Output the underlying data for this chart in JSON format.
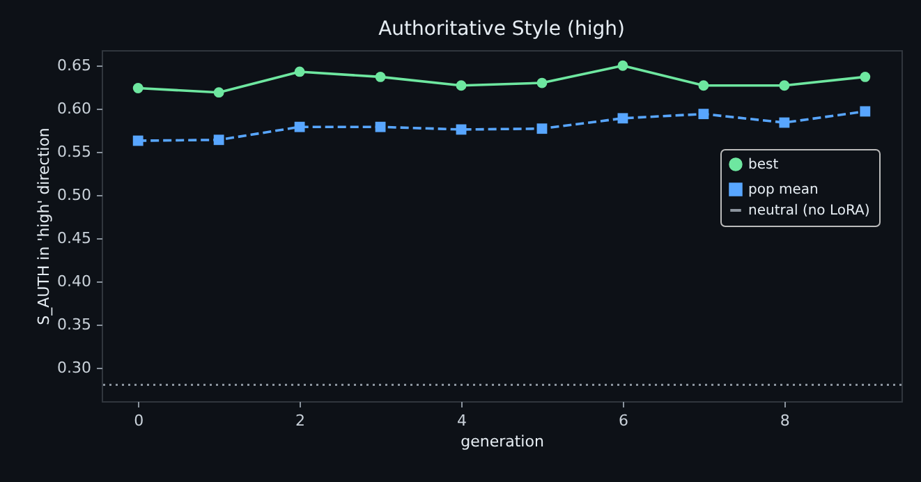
{
  "chart_data": {
    "type": "line",
    "title": "Authoritative Style (high)",
    "xlabel": "generation",
    "ylabel": "S_AUTH in 'high' direction",
    "x": [
      0,
      1,
      2,
      3,
      4,
      5,
      6,
      7,
      8,
      9
    ],
    "series": [
      {
        "name": "best",
        "color": "#6ee7a0",
        "marker": "circle",
        "line_style": "solid",
        "values": [
          0.624,
          0.619,
          0.643,
          0.637,
          0.627,
          0.63,
          0.65,
          0.627,
          0.627,
          0.637
        ]
      },
      {
        "name": "pop mean",
        "color": "#58a6ff",
        "marker": "square",
        "line_style": "dashed",
        "values": [
          0.563,
          0.564,
          0.579,
          0.579,
          0.576,
          0.577,
          0.589,
          0.594,
          0.584,
          0.597
        ]
      }
    ],
    "ref_lines": [
      {
        "axis": "y",
        "value": 0.28,
        "label": "neutral (no LoRA)",
        "color": "#8b949e",
        "line_style": "dotted"
      }
    ],
    "xlim": [
      -0.45,
      9.45
    ],
    "xticks": [
      0,
      2,
      4,
      6,
      8
    ],
    "ylim": [
      0.261,
      0.668
    ],
    "yticks": [
      {
        "value": 0.3,
        "label": "0.30"
      },
      0.35,
      {
        "value": 0.4,
        "label": "0.40"
      },
      0.45,
      {
        "value": 0.5,
        "label": "0.50"
      },
      0.55,
      {
        "value": 0.6,
        "label": "0.60"
      },
      0.65
    ],
    "grid": false,
    "legend": "right"
  }
}
